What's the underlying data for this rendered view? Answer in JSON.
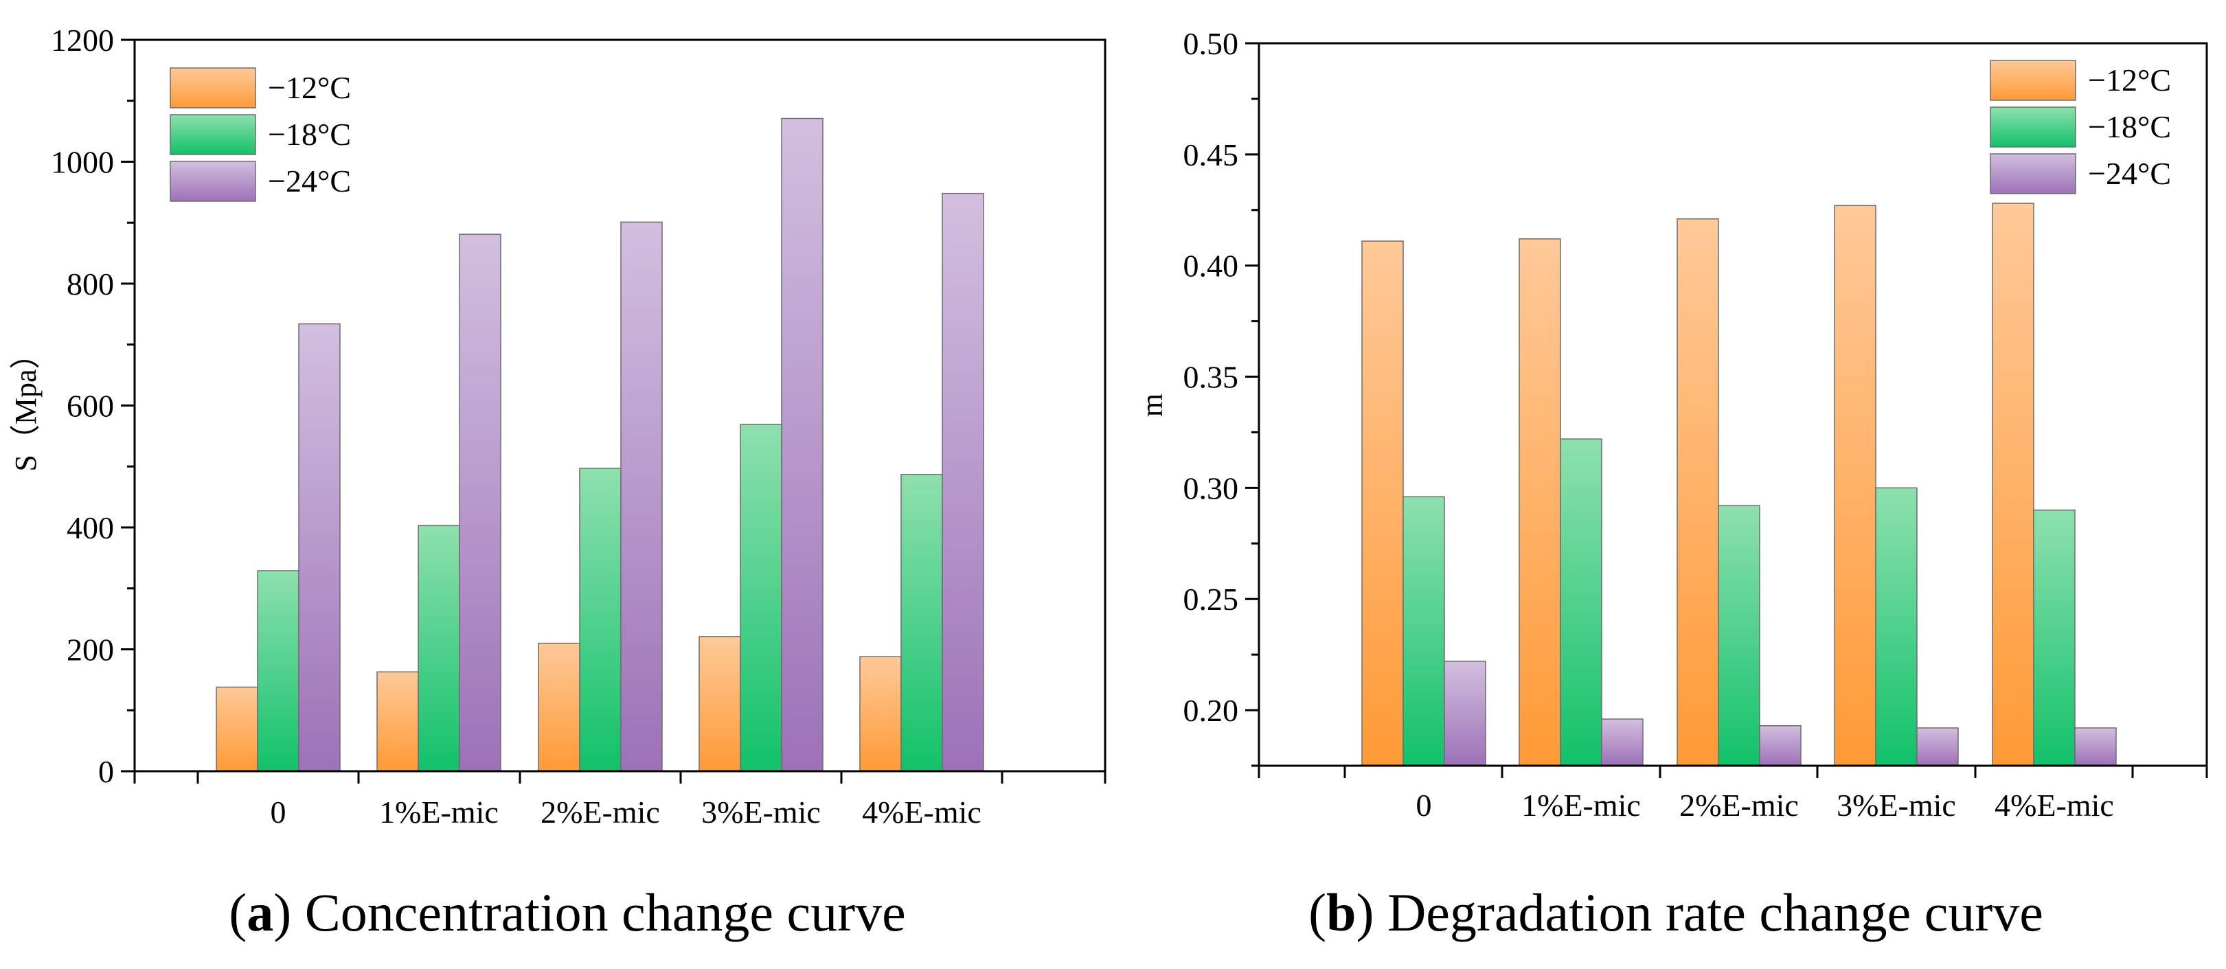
{
  "chart_data": [
    {
      "id": "a",
      "type": "bar",
      "caption_letter": "a",
      "caption_text": "Concentration change curve",
      "categories": [
        "0",
        "1%E-mic",
        "2%E-mic",
        "3%E-mic",
        "4%E-mic"
      ],
      "series": [
        {
          "name": "−12°C",
          "color": "orange",
          "values": [
            138,
            163,
            210,
            221,
            188
          ]
        },
        {
          "name": "−18°C",
          "color": "green",
          "values": [
            329,
            403,
            497,
            569,
            487
          ]
        },
        {
          "name": "−24°C",
          "color": "purple",
          "values": [
            734,
            881,
            901,
            1071,
            948
          ]
        }
      ],
      "xlabel": "",
      "ylabel": "S（Mpa）",
      "ylim": [
        0,
        1200
      ],
      "yticks": [
        "0",
        "200",
        "400",
        "600",
        "800",
        "1000",
        "1200"
      ],
      "legend": "top-left"
    },
    {
      "id": "b",
      "type": "bar",
      "caption_letter": "b",
      "caption_text": "Degradation rate change curve",
      "categories": [
        "0",
        "1%E-mic",
        "2%E-mic",
        "3%E-mic",
        "4%E-mic"
      ],
      "series": [
        {
          "name": "−12°C",
          "color": "orange",
          "values": [
            0.411,
            0.412,
            0.421,
            0.427,
            0.428
          ]
        },
        {
          "name": "−18°C",
          "color": "green",
          "values": [
            0.296,
            0.322,
            0.292,
            0.3,
            0.29
          ]
        },
        {
          "name": "−24°C",
          "color": "purple",
          "values": [
            0.222,
            0.196,
            0.193,
            0.192,
            0.192
          ]
        }
      ],
      "xlabel": "",
      "ylabel": "m",
      "ylim": [
        0.175,
        0.5
      ],
      "yticks": [
        "0.20",
        "0.25",
        "0.30",
        "0.35",
        "0.40",
        "0.45",
        "0.50"
      ],
      "legend": "top-right"
    }
  ],
  "colors": {
    "orange_top": "#ffc999",
    "orange_bottom": "#ff9a36",
    "green_top": "#8ee0ad",
    "green_bottom": "#12c16a",
    "purple_top": "#d2bfdf",
    "purple_bottom": "#9d71b8"
  }
}
